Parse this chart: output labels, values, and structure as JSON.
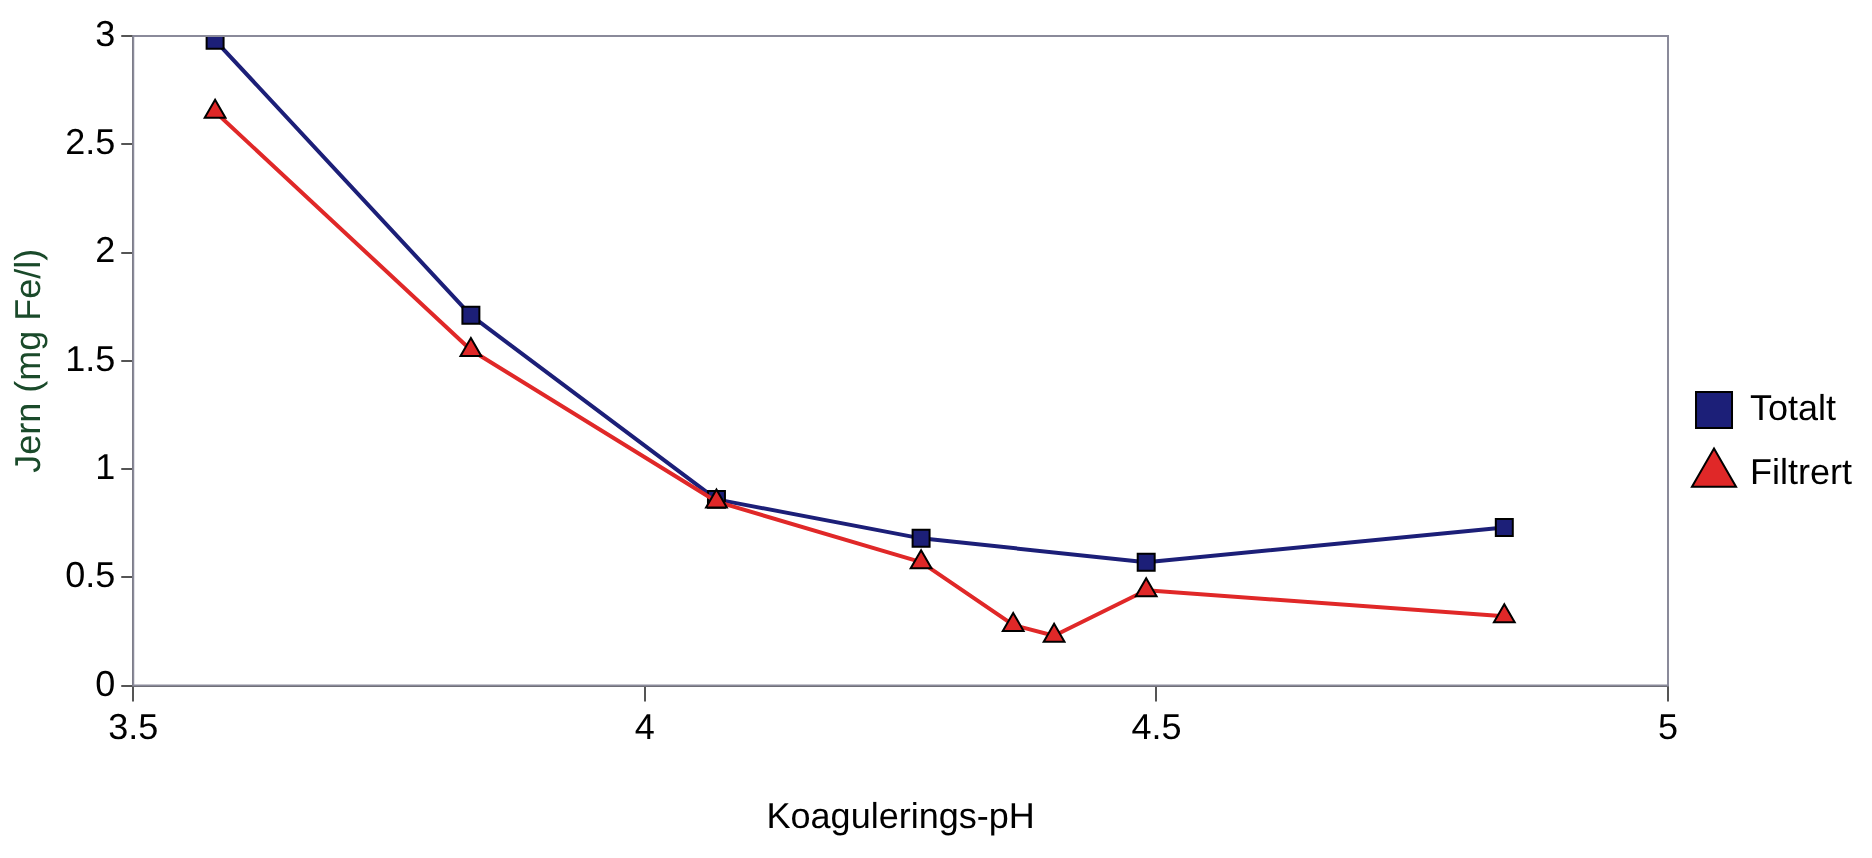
{
  "chart_data": {
    "type": "line",
    "xlabel": "Koagulerings-pH",
    "ylabel": "Jern (mg Fe/l)",
    "xlim": [
      3.5,
      5
    ],
    "xticks": [
      3.5,
      4,
      4.5,
      5
    ],
    "ylim": [
      0,
      3
    ],
    "yticks": [
      0,
      0.5,
      1,
      1.5,
      2,
      2.5,
      3
    ],
    "grid": false,
    "legend": "right",
    "line_style": "solid",
    "series": [
      {
        "name": "Totalt",
        "color": "#1c1f78",
        "marker": "square",
        "x": [
          3.58,
          3.83,
          4.07,
          4.27,
          4.49,
          4.84
        ],
        "values": [
          2.98,
          1.71,
          0.86,
          0.68,
          0.57,
          0.73
        ]
      },
      {
        "name": "Filtrert",
        "color": "#e02828",
        "marker": "triangle",
        "x": [
          3.58,
          3.83,
          4.07,
          4.27,
          4.36,
          4.4,
          4.49,
          4.84
        ],
        "values": [
          2.65,
          1.55,
          0.85,
          0.57,
          0.28,
          0.23,
          0.44,
          0.32
        ]
      }
    ]
  }
}
